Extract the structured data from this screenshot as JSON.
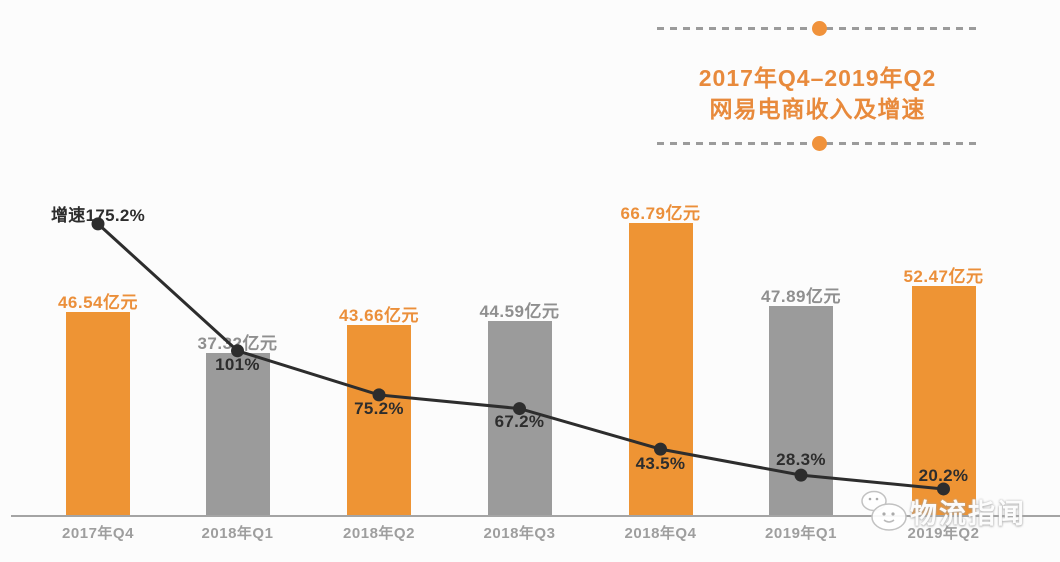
{
  "title": {
    "line1": "2017年Q4–2019年Q2",
    "line2": "网易电商收入及增速"
  },
  "watermark": {
    "text": "物流指闻"
  },
  "colors": {
    "accent_orange": "#ee9434",
    "bar_gray": "#9b9b9b",
    "line_dark": "#2d2d2d",
    "value_label_orange": "#eb8f3a",
    "value_label_gray": "#8f8f8f",
    "title_orange": "#e88a3c",
    "axis_gray": "#a4a4a4",
    "divider_dot_orange": "#f0923b"
  },
  "chart_data": {
    "type": "bar",
    "title": "2017年Q4–2019年Q2 网易电商收入及增速",
    "categories": [
      "2017年Q4",
      "2018年Q1",
      "2018年Q2",
      "2018年Q3",
      "2018年Q4",
      "2019年Q1",
      "2019年Q2"
    ],
    "series": [
      {
        "name": "网易电商收入",
        "type": "bar",
        "unit": "亿元",
        "values": [
          46.54,
          37.32,
          43.66,
          44.59,
          66.79,
          47.89,
          52.47
        ],
        "labels": [
          "46.54亿元",
          "37.32亿元",
          "43.66亿元",
          "44.59亿元",
          "66.79亿元",
          "47.89亿元",
          "52.47亿元"
        ],
        "bar_colors": [
          "orange",
          "gray",
          "orange",
          "gray",
          "orange",
          "gray",
          "orange"
        ]
      },
      {
        "name": "增速",
        "type": "line",
        "unit": "%",
        "values": [
          175.2,
          101,
          75.2,
          67.2,
          43.5,
          28.3,
          20.2
        ],
        "labels": [
          "增速175.2%",
          "101%",
          "75.2%",
          "67.2%",
          "43.5%",
          "28.3%",
          "20.2%"
        ]
      }
    ],
    "ylim_bar": [
      0,
      70
    ],
    "ylim_line": [
      0,
      180
    ],
    "gridlines": false,
    "legend_position": "none",
    "xlabel": "",
    "ylabel": ""
  }
}
